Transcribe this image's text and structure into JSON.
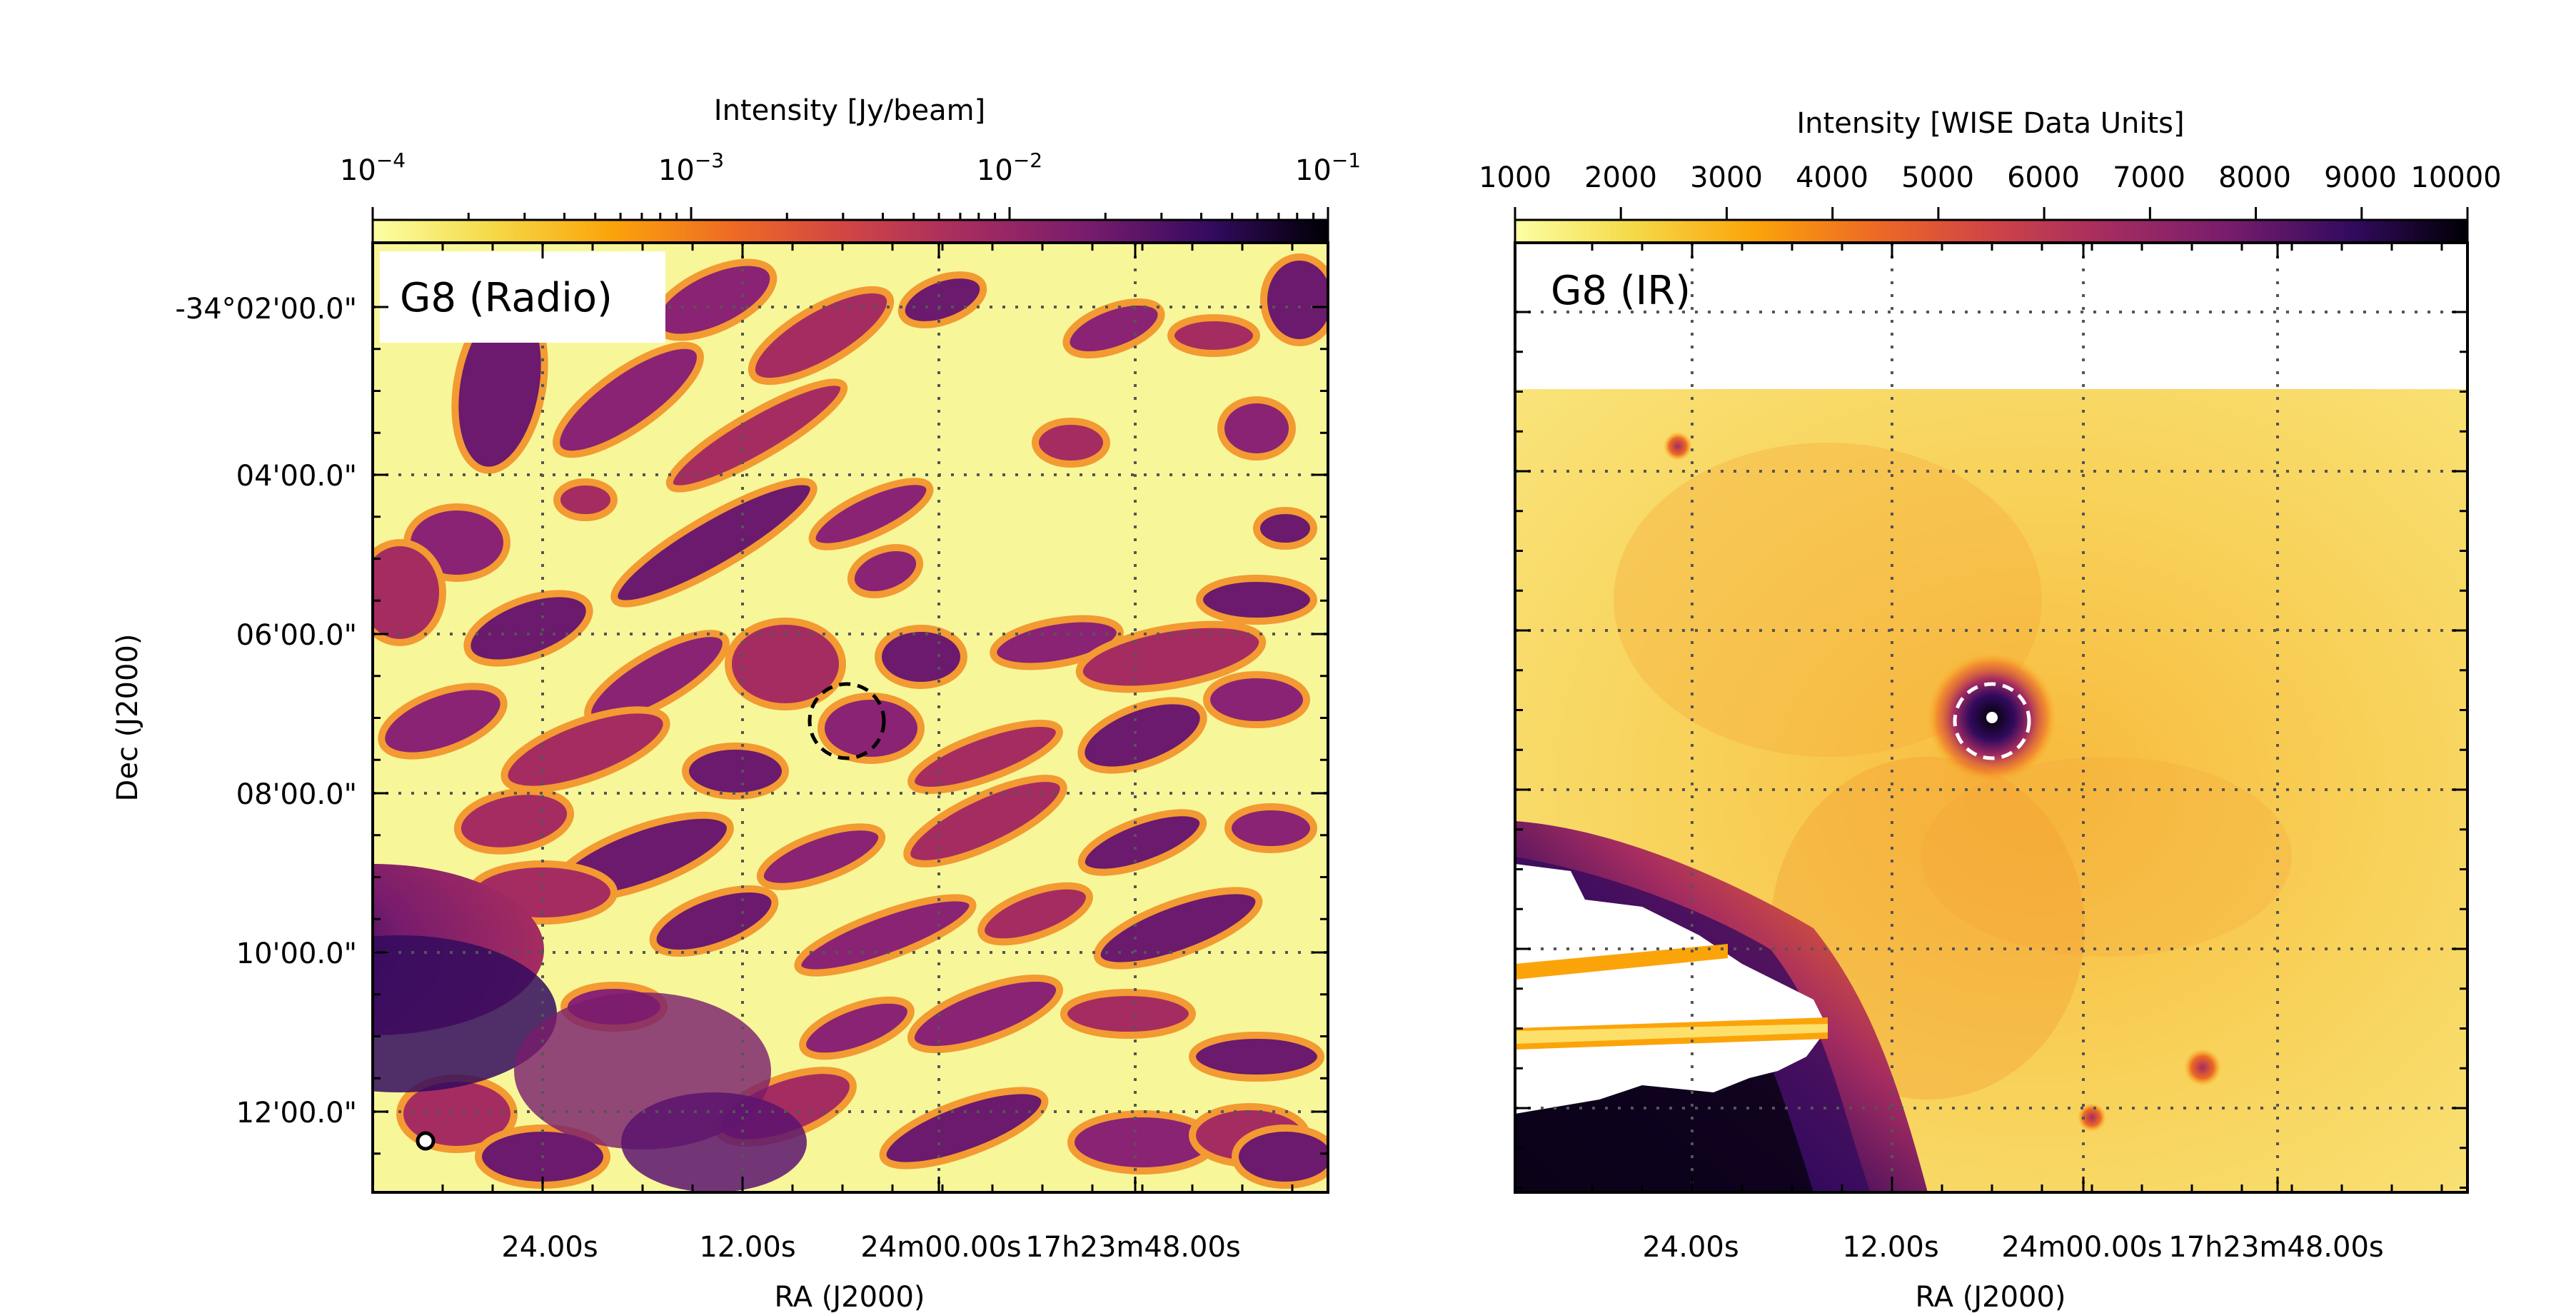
{
  "panels": [
    {
      "id": "radio",
      "label": "G8 (Radio)",
      "colorbar_label": "Intensity [Jy/beam]",
      "colorbar_ticks": [
        {
          "base": "10",
          "exp": "−4"
        },
        {
          "base": "10",
          "exp": "−3"
        },
        {
          "base": "10",
          "exp": "−2"
        },
        {
          "base": "10",
          "exp": "−1"
        }
      ],
      "colorbar_scale": "log",
      "colormap": "inferno_r",
      "xlabel": "RA (J2000)",
      "ylabel": "Dec (J2000)",
      "xticks": [
        "24.00s",
        "12.00s",
        "24m00.00s",
        "17h23m48.00s"
      ],
      "yticks": [
        "-34°02'00.0\"",
        "04'00.0\"",
        "06'00.0\"",
        "08'00.0\"",
        "10'00.0\"",
        "12'00.0\""
      ],
      "marker_circle_color": "#000000",
      "beam_marker": "small open circle (beam)"
    },
    {
      "id": "ir",
      "label": "G8 (IR)",
      "colorbar_label": "Intensity [WISE Data Units]",
      "colorbar_ticks": [
        "1000",
        "2000",
        "3000",
        "4000",
        "5000",
        "6000",
        "7000",
        "8000",
        "9000",
        "10000"
      ],
      "colorbar_scale": "linear",
      "colormap": "inferno_r",
      "xlabel": "RA (J2000)",
      "xticks": [
        "24.00s",
        "12.00s",
        "24m00.00s",
        "17h23m48.00s"
      ],
      "marker_circle_color": "#ffffff"
    }
  ],
  "colors": {
    "cmap_low": "#f6f7a0",
    "cmap_mid1": "#f8b042",
    "cmap_mid2": "#e86527",
    "cmap_mid3": "#b4365c",
    "cmap_mid4": "#6b1a6d",
    "cmap_high": "#2c0a4a",
    "cmap_max": "#000004"
  }
}
